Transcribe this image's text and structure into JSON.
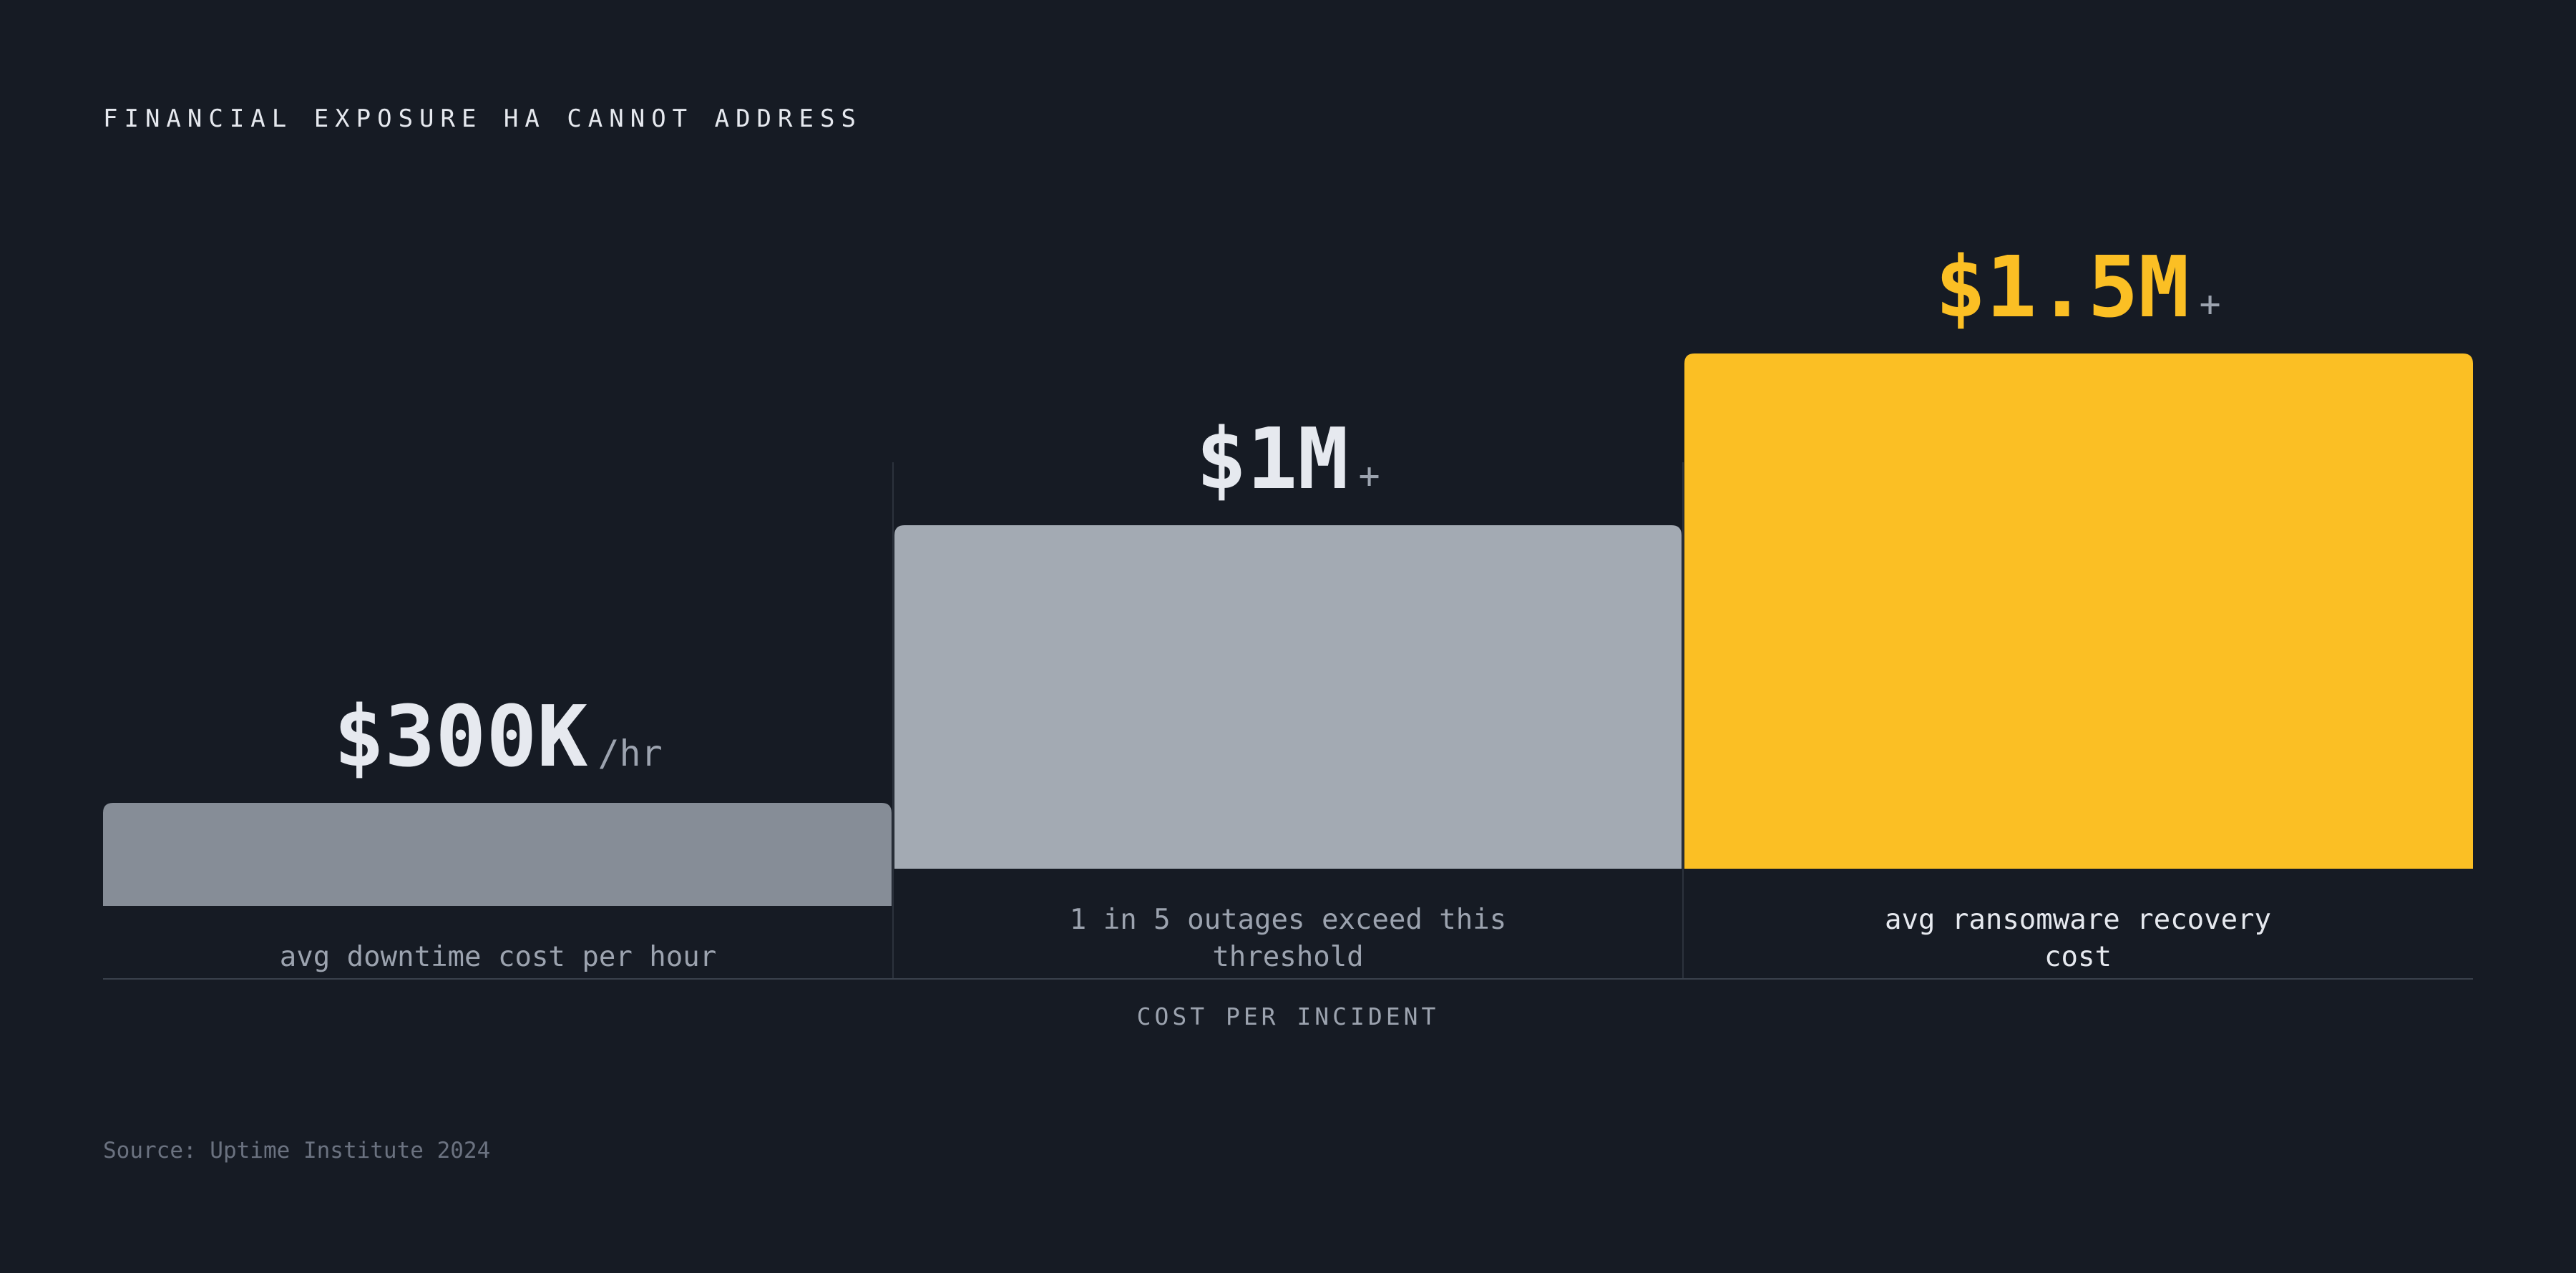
{
  "chart_data": {
    "type": "bar",
    "title": "FINANCIAL EXPOSURE HA CANNOT ADDRESS",
    "xlabel": "COST PER INCIDENT",
    "ylabel": "",
    "source": "Source: Uptime Institute 2024",
    "categories": [
      "avg downtime cost per hour",
      "1 in 5 outages exceed this threshold",
      "avg ransomware recovery cost"
    ],
    "category_lines": [
      [
        "avg downtime cost per hour"
      ],
      [
        "1 in 5 outages exceed this",
        "threshold"
      ],
      [
        "avg ransomware recovery",
        "cost"
      ]
    ],
    "values": [
      300000,
      1000000,
      1500000
    ],
    "value_labels": [
      "$300K",
      "$1M",
      "$1.5M"
    ],
    "value_suffixes": [
      "/hr",
      "+",
      "+"
    ],
    "colors": [
      "#868d97",
      "#a3aab3",
      "#fbbf24"
    ],
    "value_label_colors": [
      "#e6e9ef",
      "#e6e9ef",
      "#fbbf24"
    ],
    "category_label_colors": [
      "#9ca3af",
      "#9ca3af",
      "#e6e9ef"
    ],
    "grid": false,
    "legend": "none"
  }
}
